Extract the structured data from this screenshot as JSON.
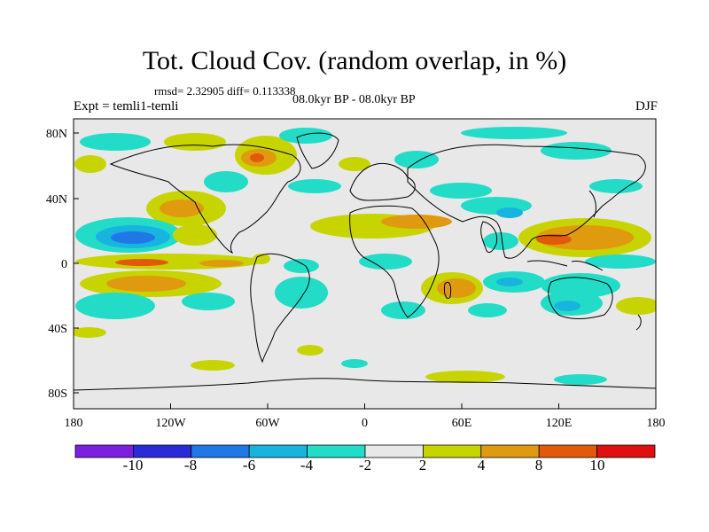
{
  "title": "Tot. Cloud Cov. (random overlap, in %)",
  "stats": "rmsd= 2.32905 diff= 0.113338",
  "experiment": "Expt = temli1-temli",
  "period": "08.0kyr BP - 08.0kyr BP",
  "season": "DJF",
  "map": {
    "lon_ticks": [
      "180",
      "120W",
      "60W",
      "0",
      "60E",
      "120E",
      "180"
    ],
    "lat_ticks": [
      "80N",
      "40N",
      "0",
      "40S",
      "80S"
    ]
  },
  "colorbar": {
    "labels": [
      "-10",
      "-8",
      "-6",
      "-4",
      "-2",
      "2",
      "4",
      "8",
      "10"
    ],
    "colors": [
      "#7c1fe0",
      "#2a2ad6",
      "#1f78e6",
      "#18b4e0",
      "#22dcc8",
      "#e8e8e8",
      "#c8d400",
      "#e09a10",
      "#e05a0a",
      "#e01010"
    ]
  }
}
